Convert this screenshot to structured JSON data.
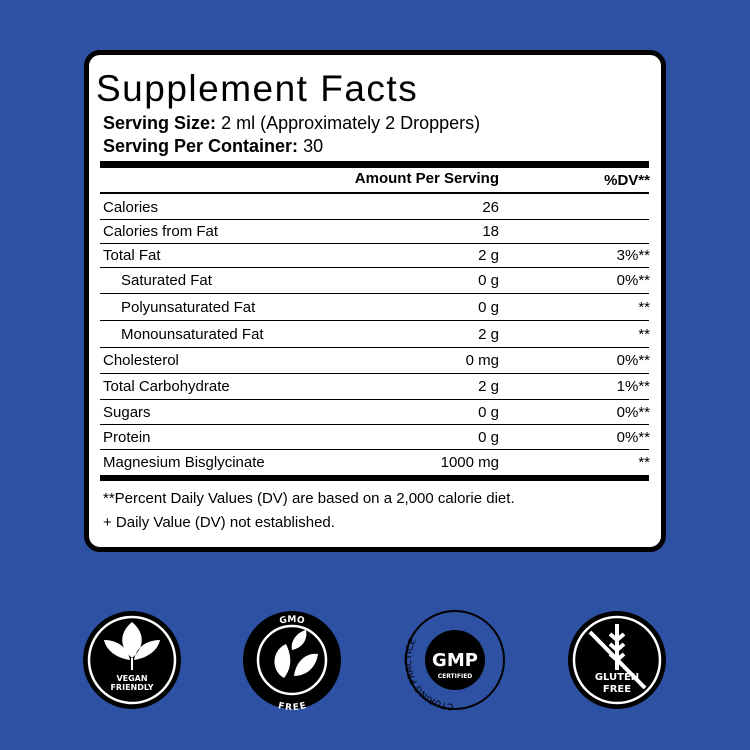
{
  "label": {
    "title": "Supplement Facts",
    "serving_size": {
      "label": "Serving Size:",
      "value": "2 ml (Approximately 2 Droppers)"
    },
    "servings_per_container": {
      "label": "Serving Per Container:",
      "value": "30"
    },
    "table": {
      "header": [
        "Amount Per Serving",
        "%DV**"
      ],
      "rows": [
        {
          "name": "Calories",
          "amount": "26"
        },
        {
          "name": "Calories from Fat",
          "amount": "18"
        },
        {
          "name": "Total Fat",
          "amount": "2 g",
          "dv": "3%**",
          "sub": [
            {
              "name": "Saturated Fat",
              "amount": "0 g",
              "dv": "0%**"
            },
            {
              "name": "Polyunsaturated Fat",
              "amount": "0 g",
              "dv": "**"
            },
            {
              "name": "Monounsaturated Fat",
              "amount": "2 g",
              "dv": "**"
            }
          ]
        },
        {
          "name": "Cholesterol",
          "amount": "0 mg",
          "dv": "0%**"
        },
        {
          "name": "Total Carbohydrate",
          "amount": "2 g",
          "dv": "1%**"
        },
        {
          "name": "Sugars",
          "amount": "0 g",
          "dv": "0%**"
        },
        {
          "name": "Protein",
          "amount": "0 g",
          "dv": "0%**"
        },
        {
          "name": "Magnesium Bisglycinate",
          "amount": "1000 mg",
          "dv": "**"
        }
      ]
    },
    "footnotes": [
      "**Percent Daily Values (DV) are based on a 2,000 calorie diet.",
      "+ Daily Value (DV) not established."
    ]
  },
  "badges": [
    {
      "lines": [
        "VEGAN",
        "FRIENDLY"
      ]
    },
    {
      "top": "GMO",
      "bottom": "FREE"
    },
    {
      "ring": "GOOD MANUFACTURING PRACTICE",
      "center": "GMP",
      "sub": "CERTIFIED"
    },
    {
      "lines": [
        "GLUTEN",
        "FREE"
      ]
    }
  ]
}
